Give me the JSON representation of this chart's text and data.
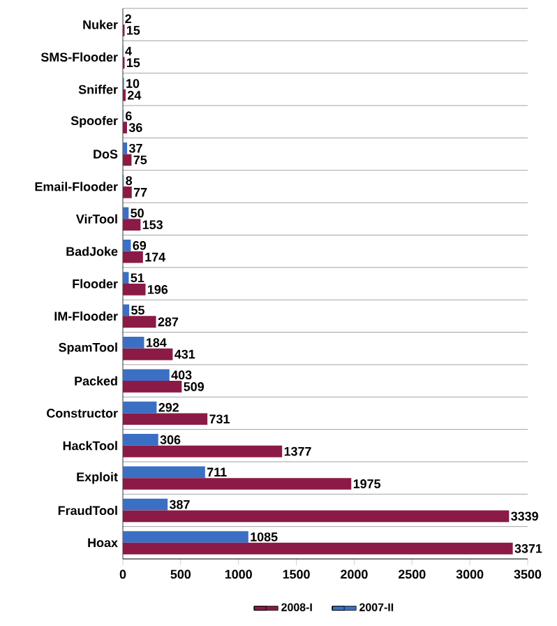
{
  "chart_data": {
    "type": "bar",
    "orientation": "horizontal",
    "categories": [
      "Nuker",
      "SMS-Flooder",
      "Sniffer",
      "Spoofer",
      "DoS",
      "Email-Flooder",
      "VirTool",
      "BadJoke",
      "Flooder",
      "IM-Flooder",
      "SpamTool",
      "Packed",
      "Constructor",
      "HackTool",
      "Exploit",
      "FraudTool",
      "Hoax"
    ],
    "series": [
      {
        "name": "2007-II",
        "color": "#3a6fc4",
        "values": [
          2,
          4,
          10,
          6,
          37,
          8,
          50,
          69,
          51,
          55,
          184,
          403,
          292,
          306,
          711,
          387,
          1085
        ]
      },
      {
        "name": "2008-I",
        "color": "#8b1a47",
        "values": [
          15,
          15,
          24,
          36,
          75,
          77,
          153,
          174,
          196,
          287,
          431,
          509,
          731,
          1377,
          1975,
          3339,
          3371
        ]
      }
    ],
    "xlim": [
      0,
      3500
    ],
    "xticks": [
      0,
      500,
      1000,
      1500,
      2000,
      2500,
      3000,
      3500
    ],
    "grid": "y",
    "legend": "bottom",
    "data_labels": true
  }
}
